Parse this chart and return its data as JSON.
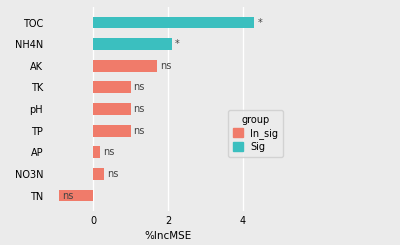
{
  "categories": [
    "TOC",
    "NH4N",
    "AK",
    "TK",
    "pH",
    "TP",
    "AP",
    "NO3N",
    "TN"
  ],
  "values": [
    4.3,
    2.1,
    1.7,
    1.0,
    1.0,
    1.0,
    0.18,
    0.3,
    -0.9
  ],
  "colors": [
    "#3bbfbf",
    "#3bbfbf",
    "#f07b6a",
    "#f07b6a",
    "#f07b6a",
    "#f07b6a",
    "#f07b6a",
    "#f07b6a",
    "#f07b6a"
  ],
  "labels": [
    "*",
    "*",
    "ns",
    "ns",
    "ns",
    "ns",
    "ns",
    "ns",
    "ns"
  ],
  "xlabel": "%IncMSE",
  "legend_title": "group",
  "legend_items": [
    {
      "label": "In_sig",
      "color": "#f07b6a"
    },
    {
      "label": "Sig",
      "color": "#3bbfbf"
    }
  ],
  "xlim": [
    -1.2,
    5.2
  ],
  "bg_color": "#ebebeb",
  "grid_color": "#ffffff",
  "label_fontsize": 7.5,
  "tick_fontsize": 7,
  "legend_fontsize": 7,
  "bar_height": 0.55
}
